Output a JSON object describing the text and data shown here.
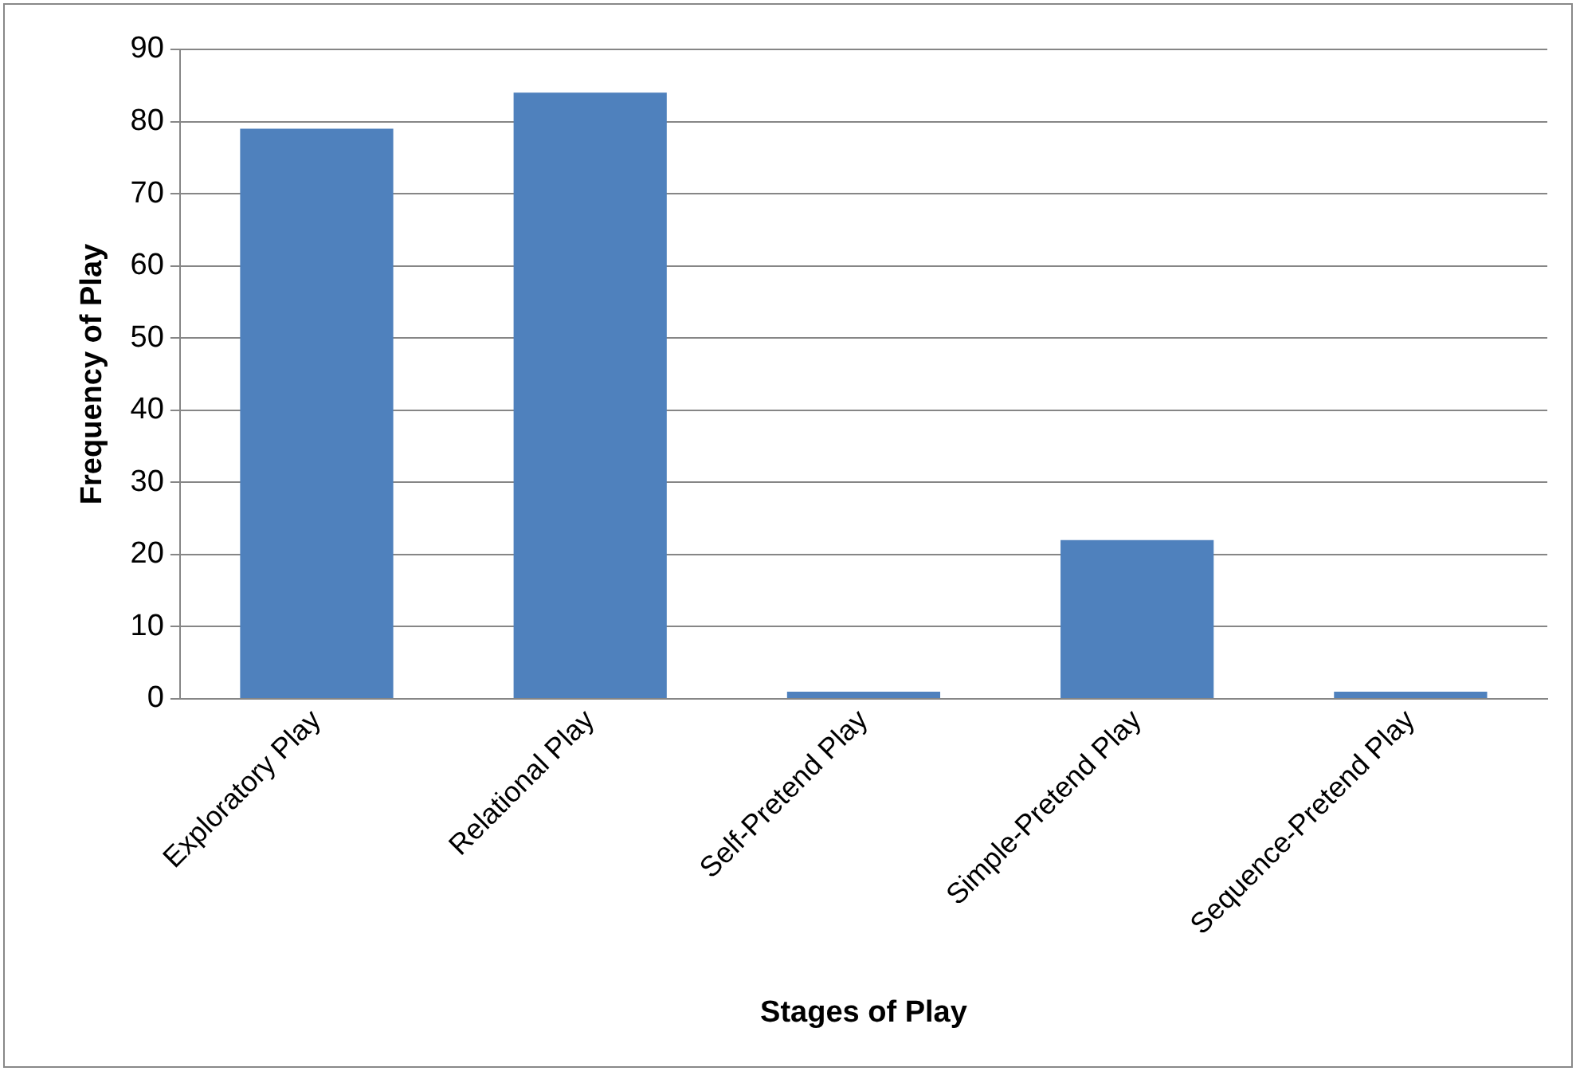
{
  "chart_data": {
    "type": "bar",
    "xlabel": "Stages of Play",
    "ylabel": "Frequency of Play",
    "categories": [
      "Exploratory Play",
      "Relational Play",
      "Self-Pretend Play",
      "Simple-Pretend Play",
      "Sequence-Pretend Play"
    ],
    "values": [
      79,
      84,
      1,
      22,
      1
    ],
    "color": "#4f81bd",
    "ylim": [
      0,
      90
    ],
    "yticks": [
      0,
      10,
      20,
      30,
      40,
      50,
      60,
      70,
      80,
      90
    ],
    "grid": "y",
    "legend": false
  }
}
